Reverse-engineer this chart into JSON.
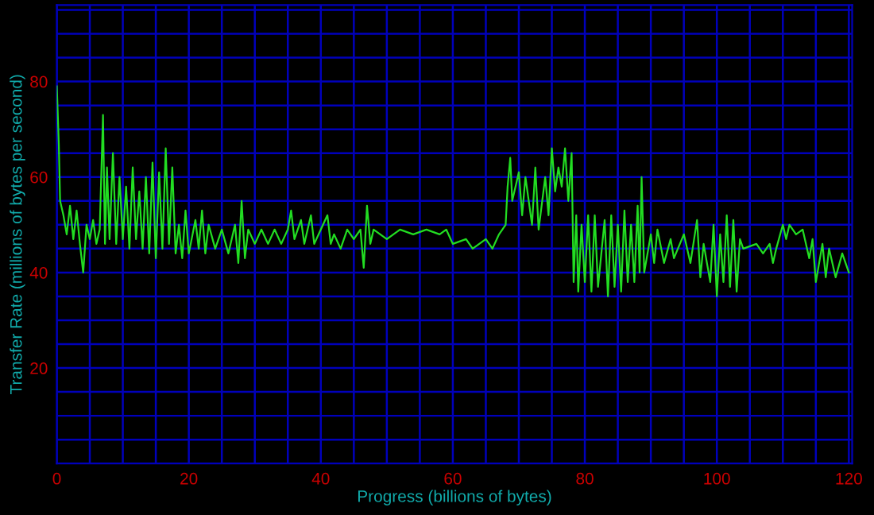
{
  "chart_data": {
    "type": "line",
    "xlabel": "Progress (billions of bytes)",
    "ylabel": "Transfer Rate (millions of bytes per second)",
    "xlim": [
      0,
      120.5
    ],
    "ylim": [
      0,
      96
    ],
    "xticks": [
      0,
      {
        "value": 5,
        "label": null
      },
      {
        "value": 10,
        "label": null
      },
      {
        "value": 15,
        "label": null
      },
      20,
      {
        "value": 25,
        "label": null
      },
      {
        "value": 30,
        "label": null
      },
      {
        "value": 35,
        "label": null
      },
      40,
      {
        "value": 45,
        "label": null
      },
      {
        "value": 50,
        "label": null
      },
      {
        "value": 55,
        "label": null
      },
      60,
      {
        "value": 65,
        "label": null
      },
      {
        "value": 70,
        "label": null
      },
      {
        "value": 75,
        "label": null
      },
      80,
      {
        "value": 85,
        "label": null
      },
      {
        "value": 90,
        "label": null
      },
      {
        "value": 95,
        "label": null
      },
      100,
      {
        "value": 105,
        "label": null
      },
      {
        "value": 110,
        "label": null
      },
      {
        "value": 115,
        "label": null
      },
      120
    ],
    "yticks": [
      {
        "value": 0,
        "label": null
      },
      {
        "value": 5,
        "label": null
      },
      {
        "value": 10,
        "label": null
      },
      {
        "value": 15,
        "label": null
      },
      20,
      {
        "value": 25,
        "label": null
      },
      {
        "value": 30,
        "label": null
      },
      {
        "value": 35,
        "label": null
      },
      40,
      {
        "value": 45,
        "label": null
      },
      {
        "value": 50,
        "label": null
      },
      {
        "value": 55,
        "label": null
      },
      60,
      {
        "value": 65,
        "label": null
      },
      {
        "value": 70,
        "label": null
      },
      {
        "value": 75,
        "label": null
      },
      80,
      {
        "value": 85,
        "label": null
      },
      {
        "value": 90,
        "label": null
      },
      {
        "value": 95,
        "label": null
      }
    ],
    "grid": true,
    "marker": "none",
    "line_style": "solid",
    "series": [
      {
        "color": "#22dd22",
        "x": [
          0,
          0.3,
          0.5,
          1,
          1.5,
          2,
          2.5,
          3,
          3.5,
          4,
          4.5,
          5,
          5.5,
          6,
          6.5,
          7,
          7.3,
          7.6,
          8,
          8.5,
          9,
          9.5,
          10,
          10.5,
          11,
          11.5,
          12,
          12.5,
          13,
          13.5,
          14,
          14.5,
          15,
          15.5,
          16,
          16.5,
          17,
          17.5,
          18,
          18.5,
          19,
          19.5,
          20,
          21,
          21.5,
          22,
          22.5,
          23,
          24,
          25,
          26,
          27,
          27.5,
          28,
          28.5,
          29,
          30,
          31,
          32,
          33,
          34,
          35,
          35.5,
          36,
          37,
          37.5,
          38.5,
          39,
          40,
          41,
          41.5,
          42,
          43,
          44,
          45,
          46,
          46.5,
          47,
          47.5,
          48,
          50,
          52,
          54,
          56,
          58,
          59,
          60,
          62,
          63,
          65,
          66,
          67,
          68,
          68.3,
          68.7,
          69,
          70,
          70.5,
          71,
          72,
          72.5,
          73,
          74,
          74.5,
          75,
          75.5,
          76,
          76.5,
          77,
          77.5,
          78,
          78.3,
          78.7,
          79,
          79.5,
          80,
          80.5,
          81,
          81.5,
          82,
          83,
          83.5,
          84,
          84.5,
          85,
          85.5,
          86,
          86.5,
          87,
          87.5,
          88,
          88.3,
          88.6,
          89,
          90,
          90.5,
          91,
          92,
          93,
          93.5,
          95,
          96,
          97,
          97.5,
          98,
          99,
          99.5,
          100,
          100.5,
          101,
          101.5,
          102,
          102.5,
          103,
          103.5,
          104,
          106,
          107,
          108,
          108.5,
          109,
          110,
          110.5,
          111,
          112,
          113,
          114,
          114.5,
          115,
          116,
          116.5,
          117,
          118,
          119,
          120
        ],
        "values": [
          79,
          67,
          55,
          52,
          48,
          54,
          47,
          53,
          46,
          40,
          50,
          47,
          51,
          46,
          49,
          73,
          46,
          62,
          47,
          65,
          46,
          60,
          47,
          58,
          45,
          62,
          47,
          57,
          45,
          60,
          44,
          63,
          43,
          61,
          45,
          66,
          46,
          62,
          44,
          50,
          43,
          53,
          44,
          51,
          45,
          53,
          44,
          50,
          45,
          49,
          44,
          50,
          42,
          55,
          43,
          49,
          46,
          49,
          46,
          49,
          46,
          49,
          53,
          47,
          51,
          46,
          52,
          46,
          49,
          52,
          46,
          48,
          45,
          49,
          47,
          49,
          41,
          54,
          46,
          49,
          47,
          49,
          48,
          49,
          48,
          49,
          46,
          47,
          45,
          47,
          45,
          48,
          50,
          58,
          64,
          55,
          61,
          52,
          60,
          50,
          62,
          49,
          60,
          52,
          66,
          57,
          62,
          58,
          66,
          55,
          65,
          38,
          52,
          36,
          50,
          38,
          52,
          36,
          52,
          37,
          51,
          35,
          52,
          37,
          50,
          36,
          53,
          38,
          50,
          38,
          54,
          40,
          60,
          40,
          48,
          42,
          49,
          42,
          47,
          43,
          48,
          42,
          51,
          39,
          46,
          38,
          50,
          35,
          48,
          38,
          52,
          37,
          51,
          36,
          47,
          45,
          46,
          44,
          46,
          42,
          45,
          50,
          47,
          50,
          48,
          49,
          43,
          47,
          38,
          46,
          39,
          45,
          39,
          44,
          40
        ]
      }
    ]
  }
}
